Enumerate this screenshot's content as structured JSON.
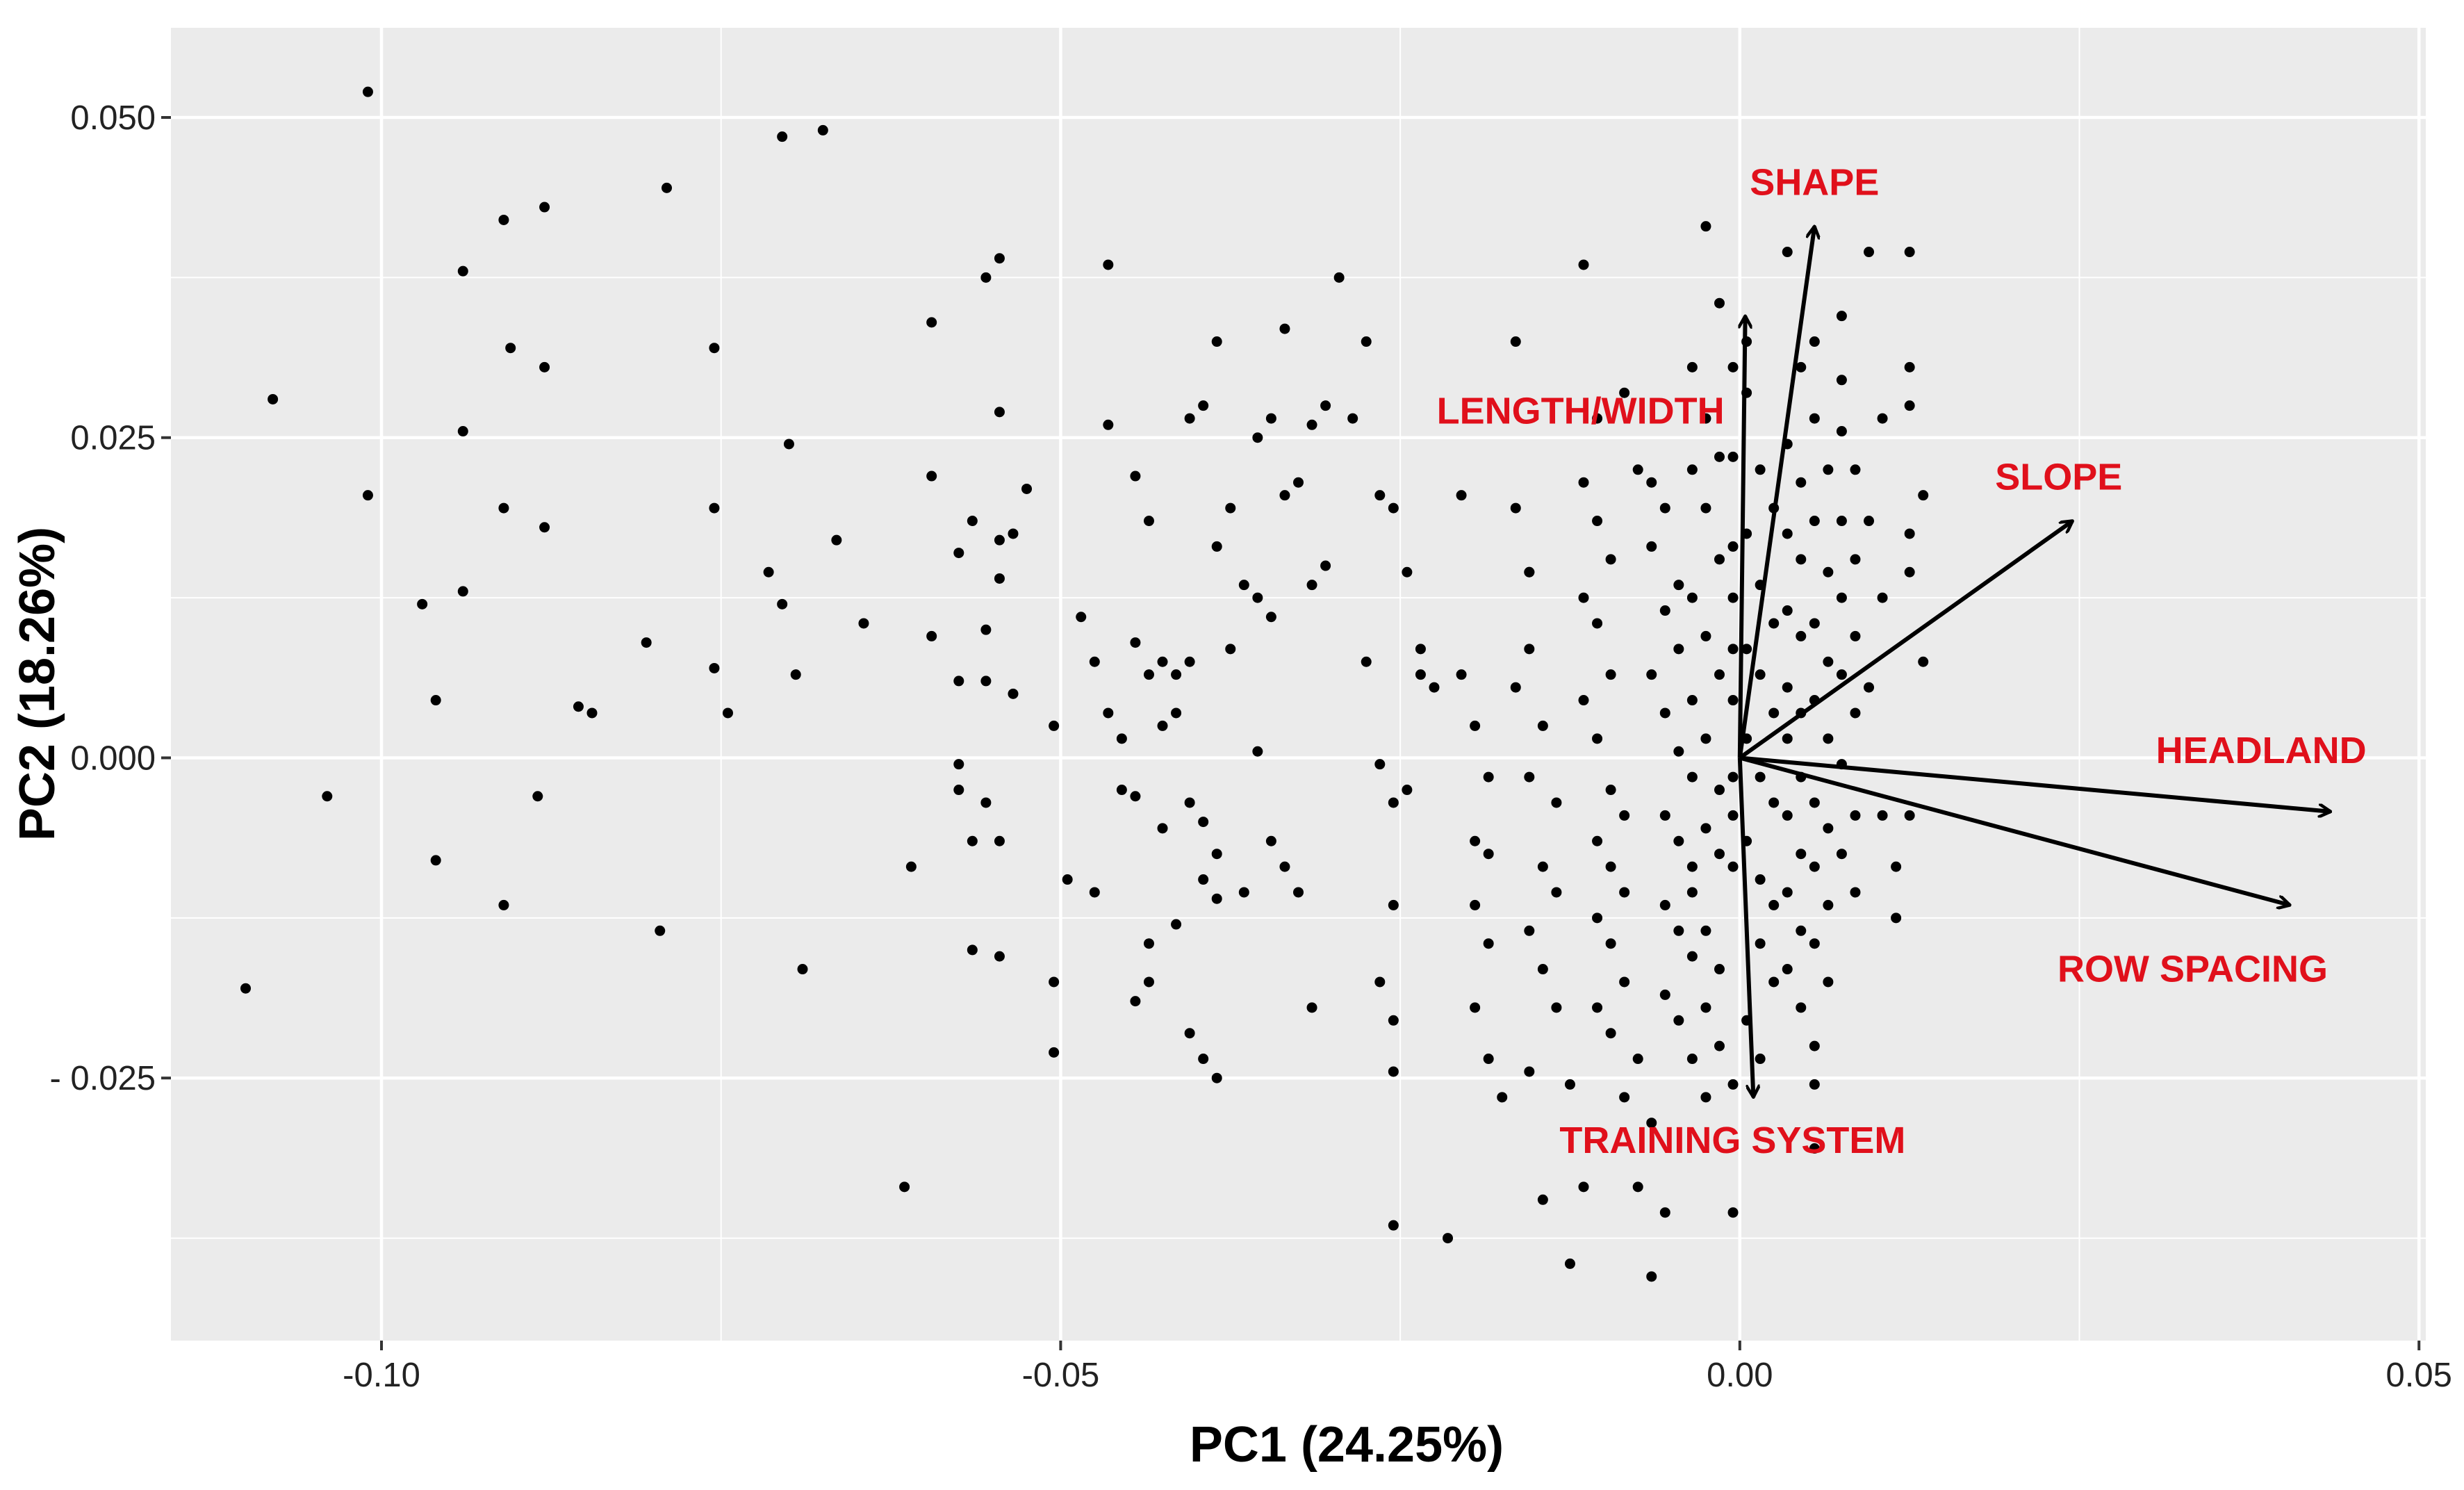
{
  "chart_data": {
    "type": "scatter",
    "title": "",
    "xlabel": "PC1 (24.25%)",
    "ylabel": "PC2 (18.26%)",
    "xlim": [
      -0.1155,
      0.0505
    ],
    "ylim": [
      -0.0455,
      0.057
    ],
    "grid": true,
    "x_ticks": [
      -0.1,
      -0.05,
      0.0,
      0.05
    ],
    "x_tick_labels": [
      "-0.10",
      "-0.05",
      "0.00",
      "0.05"
    ],
    "y_ticks": [
      -0.025,
      0.0,
      0.025,
      0.05
    ],
    "y_tick_labels": [
      "- 0.025",
      "0.000",
      "0.025",
      "0.050"
    ],
    "colors": {
      "panel": "#ebebeb",
      "grid": "#ffffff",
      "points": "#000000",
      "arrows": "#000000",
      "labels": "#e0101b"
    },
    "vectors": [
      {
        "name": "SHAPE",
        "x": 0.0055,
        "y": 0.0415
      },
      {
        "name": "LENGTH/WIDTH",
        "x": 0.0004,
        "y": 0.0345
      },
      {
        "name": "SLOPE",
        "x": 0.0245,
        "y": 0.0185
      },
      {
        "name": "HEADLAND",
        "x": 0.0435,
        "y": -0.0042
      },
      {
        "name": "ROW SPACING",
        "x": 0.0405,
        "y": -0.0115
      },
      {
        "name": "TRAINING SYSTEM",
        "x": 0.001,
        "y": -0.0265
      }
    ],
    "points": [
      [
        -0.101,
        0.052
      ],
      [
        -0.108,
        0.028
      ],
      [
        -0.101,
        0.0205
      ],
      [
        -0.11,
        -0.018
      ],
      [
        -0.104,
        -0.003
      ],
      [
        -0.097,
        0.012
      ],
      [
        -0.096,
        0.0045
      ],
      [
        -0.096,
        -0.008
      ],
      [
        -0.094,
        0.038
      ],
      [
        -0.094,
        0.0255
      ],
      [
        -0.094,
        0.013
      ],
      [
        -0.091,
        0.042
      ],
      [
        -0.0905,
        0.032
      ],
      [
        -0.091,
        0.0195
      ],
      [
        -0.091,
        -0.0115
      ],
      [
        -0.088,
        0.043
      ],
      [
        -0.088,
        0.0305
      ],
      [
        -0.088,
        0.018
      ],
      [
        -0.0885,
        -0.003
      ],
      [
        -0.0855,
        0.004
      ],
      [
        -0.0845,
        0.0035
      ],
      [
        -0.079,
        0.0445
      ],
      [
        -0.0755,
        0.032
      ],
      [
        -0.0755,
        0.0195
      ],
      [
        -0.0805,
        0.009
      ],
      [
        -0.0755,
        0.007
      ],
      [
        -0.0745,
        0.0035
      ],
      [
        -0.0795,
        -0.0135
      ],
      [
        -0.0715,
        0.0145
      ],
      [
        -0.07,
        0.0245
      ],
      [
        -0.0705,
        0.012
      ],
      [
        -0.0695,
        0.0065
      ],
      [
        -0.069,
        -0.0165
      ],
      [
        -0.0705,
        0.0485
      ],
      [
        -0.0675,
        0.049
      ],
      [
        -0.0665,
        0.017
      ],
      [
        -0.0645,
        0.0105
      ],
      [
        -0.061,
        -0.0085
      ],
      [
        -0.0615,
        -0.0335
      ],
      [
        -0.0595,
        0.034
      ],
      [
        -0.0595,
        0.022
      ],
      [
        -0.0595,
        0.0095
      ],
      [
        -0.0575,
        0.016
      ],
      [
        -0.0555,
        0.0375
      ],
      [
        -0.0545,
        0.039
      ],
      [
        -0.0565,
        0.0185
      ],
      [
        -0.0545,
        0.017
      ],
      [
        -0.0545,
        0.014
      ],
      [
        -0.0535,
        0.0175
      ],
      [
        -0.0525,
        0.021
      ],
      [
        -0.0545,
        0.027
      ],
      [
        -0.0555,
        0.01
      ],
      [
        -0.0555,
        0.006
      ],
      [
        -0.0575,
        0.006
      ],
      [
        -0.0535,
        0.005
      ],
      [
        -0.0505,
        0.0025
      ],
      [
        -0.0575,
        -0.0005
      ],
      [
        -0.0575,
        -0.0025
      ],
      [
        -0.0565,
        -0.0065
      ],
      [
        -0.0555,
        -0.0035
      ],
      [
        -0.0545,
        -0.0065
      ],
      [
        -0.0565,
        -0.015
      ],
      [
        -0.0545,
        -0.0155
      ],
      [
        -0.0495,
        -0.0095
      ],
      [
        -0.0505,
        -0.0175
      ],
      [
        -0.0505,
        -0.023
      ],
      [
        -0.0475,
        -0.0105
      ],
      [
        -0.0485,
        0.011
      ],
      [
        -0.0475,
        0.0075
      ],
      [
        -0.0465,
        0.0035
      ],
      [
        -0.0455,
        0.0015
      ],
      [
        -0.0455,
        -0.0025
      ],
      [
        -0.0445,
        0.009
      ],
      [
        -0.0435,
        0.0065
      ],
      [
        -0.0425,
        0.0075
      ],
      [
        -0.0415,
        0.0065
      ],
      [
        -0.0405,
        0.0075
      ],
      [
        -0.0415,
        0.0035
      ],
      [
        -0.0425,
        0.0025
      ],
      [
        -0.0445,
        -0.003
      ],
      [
        -0.0425,
        -0.0055
      ],
      [
        -0.0405,
        -0.0035
      ],
      [
        -0.0395,
        -0.005
      ],
      [
        -0.0385,
        -0.0075
      ],
      [
        -0.0395,
        -0.0095
      ],
      [
        -0.0385,
        -0.011
      ],
      [
        -0.0415,
        -0.013
      ],
      [
        -0.0435,
        -0.0145
      ],
      [
        -0.0435,
        -0.0175
      ],
      [
        -0.0445,
        -0.019
      ],
      [
        -0.0405,
        -0.0215
      ],
      [
        -0.0395,
        -0.0235
      ],
      [
        -0.0385,
        -0.025
      ],
      [
        -0.0465,
        0.0385
      ],
      [
        -0.0465,
        0.026
      ],
      [
        -0.0445,
        0.022
      ],
      [
        -0.0435,
        0.0185
      ],
      [
        -0.0405,
        0.0265
      ],
      [
        -0.0395,
        0.0275
      ],
      [
        -0.0385,
        0.0165
      ],
      [
        -0.0375,
        0.0195
      ],
      [
        -0.0365,
        0.0135
      ],
      [
        -0.0355,
        0.0125
      ],
      [
        -0.0345,
        0.011
      ],
      [
        -0.0385,
        0.0325
      ],
      [
        -0.0355,
        0.025
      ],
      [
        -0.0345,
        0.0265
      ],
      [
        -0.0335,
        0.0335
      ],
      [
        -0.0325,
        0.0215
      ],
      [
        -0.0335,
        0.0205
      ],
      [
        -0.0315,
        0.026
      ],
      [
        -0.0305,
        0.0275
      ],
      [
        -0.0305,
        0.015
      ],
      [
        -0.0315,
        0.0135
      ],
      [
        -0.0375,
        0.0085
      ],
      [
        -0.0355,
        0.0005
      ],
      [
        -0.0345,
        -0.0065
      ],
      [
        -0.0335,
        -0.0085
      ],
      [
        -0.0325,
        -0.0105
      ],
      [
        -0.0315,
        -0.0195
      ],
      [
        -0.0365,
        -0.0105
      ],
      [
        -0.0295,
        0.0375
      ],
      [
        -0.0285,
        0.0265
      ],
      [
        -0.0275,
        0.0325
      ],
      [
        -0.0265,
        0.0205
      ],
      [
        -0.0255,
        0.0195
      ],
      [
        -0.0245,
        0.0145
      ],
      [
        -0.0275,
        0.0075
      ],
      [
        -0.0265,
        -0.0005
      ],
      [
        -0.0255,
        -0.0035
      ],
      [
        -0.0255,
        -0.0115
      ],
      [
        -0.0265,
        -0.0175
      ],
      [
        -0.0255,
        -0.0205
      ],
      [
        -0.0255,
        -0.0245
      ],
      [
        -0.0255,
        -0.0365
      ],
      [
        -0.0235,
        0.0085
      ],
      [
        -0.0235,
        0.0065
      ],
      [
        -0.0245,
        -0.0025
      ],
      [
        -0.0225,
        0.0055
      ],
      [
        -0.0205,
        0.0205
      ],
      [
        -0.0205,
        0.0065
      ],
      [
        -0.0195,
        0.0025
      ],
      [
        -0.0185,
        -0.0015
      ],
      [
        -0.0195,
        -0.0065
      ],
      [
        -0.0185,
        -0.0075
      ],
      [
        -0.0195,
        -0.0115
      ],
      [
        -0.0185,
        -0.0145
      ],
      [
        -0.0195,
        -0.0195
      ],
      [
        -0.0185,
        -0.0235
      ],
      [
        -0.0175,
        -0.0265
      ],
      [
        -0.0215,
        -0.0375
      ],
      [
        -0.0165,
        0.0325
      ],
      [
        -0.0165,
        0.0195
      ],
      [
        -0.0155,
        0.0145
      ],
      [
        -0.0155,
        0.0145
      ],
      [
        -0.0155,
        0.0085
      ],
      [
        -0.0165,
        0.0055
      ],
      [
        -0.0145,
        0.0025
      ],
      [
        -0.0155,
        -0.0015
      ],
      [
        -0.0135,
        -0.0035
      ],
      [
        -0.0145,
        -0.0085
      ],
      [
        -0.0135,
        -0.0105
      ],
      [
        -0.0155,
        -0.0135
      ],
      [
        -0.0145,
        -0.0165
      ],
      [
        -0.0135,
        -0.0195
      ],
      [
        -0.0155,
        -0.0245
      ],
      [
        -0.0125,
        -0.0255
      ],
      [
        -0.0115,
        -0.0335
      ],
      [
        -0.0145,
        -0.0345
      ],
      [
        -0.0125,
        -0.0395
      ],
      [
        -0.0115,
        0.0385
      ],
      [
        -0.0105,
        0.0265
      ],
      [
        -0.0115,
        0.0215
      ],
      [
        -0.0105,
        0.0185
      ],
      [
        -0.0095,
        0.0155
      ],
      [
        -0.0115,
        0.0125
      ],
      [
        -0.0105,
        0.0105
      ],
      [
        -0.0095,
        0.0065
      ],
      [
        -0.0115,
        0.0045
      ],
      [
        -0.0105,
        0.0015
      ],
      [
        -0.0095,
        -0.0025
      ],
      [
        -0.0085,
        -0.0045
      ],
      [
        -0.0105,
        -0.0065
      ],
      [
        -0.0095,
        -0.0085
      ],
      [
        -0.0085,
        -0.0105
      ],
      [
        -0.0105,
        -0.0125
      ],
      [
        -0.0095,
        -0.0145
      ],
      [
        -0.0085,
        -0.0175
      ],
      [
        -0.0105,
        -0.0195
      ],
      [
        -0.0095,
        -0.0215
      ],
      [
        -0.0075,
        -0.0235
      ],
      [
        -0.0085,
        -0.0265
      ],
      [
        -0.0065,
        -0.0285
      ],
      [
        -0.0075,
        -0.0335
      ],
      [
        -0.0055,
        -0.0355
      ],
      [
        -0.0085,
        0.0285
      ],
      [
        -0.0075,
        0.0225
      ],
      [
        -0.0065,
        0.0215
      ],
      [
        -0.0055,
        0.0195
      ],
      [
        -0.0065,
        0.0165
      ],
      [
        -0.0045,
        0.0135
      ],
      [
        -0.0055,
        0.0115
      ],
      [
        -0.0045,
        0.0085
      ],
      [
        -0.0065,
        0.0065
      ],
      [
        -0.0055,
        0.0035
      ],
      [
        -0.0045,
        0.0005
      ],
      [
        -0.0035,
        -0.0015
      ],
      [
        -0.0055,
        -0.0045
      ],
      [
        -0.0045,
        -0.0065
      ],
      [
        -0.0035,
        -0.0085
      ],
      [
        -0.0055,
        -0.0115
      ],
      [
        -0.0045,
        -0.0135
      ],
      [
        -0.0035,
        -0.0155
      ],
      [
        -0.0055,
        -0.0185
      ],
      [
        -0.0045,
        -0.0205
      ],
      [
        -0.0035,
        -0.0235
      ],
      [
        -0.0025,
        -0.0265
      ],
      [
        -0.0065,
        -0.0405
      ],
      [
        -0.0025,
        0.0415
      ],
      [
        -0.0035,
        0.0305
      ],
      [
        -0.0025,
        0.0265
      ],
      [
        -0.0015,
        0.0235
      ],
      [
        -0.0035,
        0.0225
      ],
      [
        -0.0025,
        0.0195
      ],
      [
        -0.0015,
        0.0155
      ],
      [
        -0.0035,
        0.0125
      ],
      [
        -0.0025,
        0.0095
      ],
      [
        -0.0015,
        0.0065
      ],
      [
        -0.0035,
        0.0045
      ],
      [
        -0.0025,
        0.0015
      ],
      [
        -0.0015,
        -0.0025
      ],
      [
        -0.0025,
        -0.0055
      ],
      [
        -0.0015,
        -0.0075
      ],
      [
        -0.0035,
        -0.0105
      ],
      [
        -0.0025,
        -0.0135
      ],
      [
        -0.0015,
        -0.0165
      ],
      [
        -0.0025,
        -0.0195
      ],
      [
        -0.0015,
        -0.0225
      ],
      [
        -0.0005,
        -0.0255
      ],
      [
        -0.0005,
        -0.0355
      ],
      [
        -0.0015,
        0.0355
      ],
      [
        -0.0005,
        0.0305
      ],
      [
        -0.0005,
        0.0235
      ],
      [
        -0.0005,
        0.0165
      ],
      [
        -0.0005,
        0.0125
      ],
      [
        -0.0005,
        0.0085
      ],
      [
        -0.0005,
        0.0045
      ],
      [
        -0.0005,
        -0.0015
      ],
      [
        -0.0005,
        -0.0045
      ],
      [
        -0.0005,
        -0.0085
      ],
      [
        0.0005,
        0.0325
      ],
      [
        0.0005,
        0.0285
      ],
      [
        0.0015,
        0.0225
      ],
      [
        0.0025,
        0.0195
      ],
      [
        0.0005,
        0.0175
      ],
      [
        0.0015,
        0.0135
      ],
      [
        0.0025,
        0.0105
      ],
      [
        0.0005,
        0.0085
      ],
      [
        0.0015,
        0.0065
      ],
      [
        0.0025,
        0.0035
      ],
      [
        0.0005,
        0.0015
      ],
      [
        0.0015,
        -0.0015
      ],
      [
        0.0025,
        -0.0035
      ],
      [
        0.0005,
        -0.0065
      ],
      [
        0.0015,
        -0.0095
      ],
      [
        0.0025,
        -0.0115
      ],
      [
        0.0015,
        -0.0145
      ],
      [
        0.0025,
        -0.0175
      ],
      [
        0.0005,
        -0.0205
      ],
      [
        0.0015,
        -0.0235
      ],
      [
        0.0035,
        0.0395
      ],
      [
        0.0045,
        0.0305
      ],
      [
        0.0035,
        0.0245
      ],
      [
        0.0045,
        0.0215
      ],
      [
        0.0035,
        0.0175
      ],
      [
        0.0045,
        0.0155
      ],
      [
        0.0035,
        0.0115
      ],
      [
        0.0045,
        0.0095
      ],
      [
        0.0035,
        0.0055
      ],
      [
        0.0045,
        0.0035
      ],
      [
        0.0035,
        0.0015
      ],
      [
        0.0045,
        -0.0015
      ],
      [
        0.0035,
        -0.0045
      ],
      [
        0.0045,
        -0.0075
      ],
      [
        0.0035,
        -0.0105
      ],
      [
        0.0045,
        -0.0135
      ],
      [
        0.0035,
        -0.0165
      ],
      [
        0.0045,
        -0.0195
      ],
      [
        0.0055,
        -0.0225
      ],
      [
        0.0055,
        -0.0255
      ],
      [
        0.0055,
        -0.0305
      ],
      [
        0.0055,
        0.0325
      ],
      [
        0.0055,
        0.0265
      ],
      [
        0.0065,
        0.0225
      ],
      [
        0.0055,
        0.0185
      ],
      [
        0.0065,
        0.0145
      ],
      [
        0.0055,
        0.0105
      ],
      [
        0.0065,
        0.0075
      ],
      [
        0.0055,
        0.0045
      ],
      [
        0.0065,
        0.0015
      ],
      [
        0.0055,
        -0.0035
      ],
      [
        0.0065,
        -0.0055
      ],
      [
        0.0055,
        -0.0085
      ],
      [
        0.0065,
        -0.0115
      ],
      [
        0.0055,
        -0.0145
      ],
      [
        0.0065,
        -0.0175
      ],
      [
        0.0075,
        0.0345
      ],
      [
        0.0075,
        0.0295
      ],
      [
        0.0075,
        0.0255
      ],
      [
        0.0085,
        0.0225
      ],
      [
        0.0075,
        0.0185
      ],
      [
        0.0085,
        0.0155
      ],
      [
        0.0075,
        0.0125
      ],
      [
        0.0085,
        0.0095
      ],
      [
        0.0075,
        0.0065
      ],
      [
        0.0085,
        0.0035
      ],
      [
        0.0075,
        -0.0005
      ],
      [
        0.0085,
        -0.0045
      ],
      [
        0.0075,
        -0.0075
      ],
      [
        0.0085,
        -0.0105
      ],
      [
        0.0095,
        0.0395
      ],
      [
        0.0105,
        0.0265
      ],
      [
        0.0095,
        0.0185
      ],
      [
        0.0105,
        0.0125
      ],
      [
        0.0095,
        0.0055
      ],
      [
        0.0105,
        -0.0045
      ],
      [
        0.0115,
        -0.0085
      ],
      [
        0.0115,
        -0.0125
      ],
      [
        0.0125,
        0.0395
      ],
      [
        0.0125,
        0.0305
      ],
      [
        0.0125,
        0.0275
      ],
      [
        0.0135,
        0.0205
      ],
      [
        0.0125,
        0.0175
      ],
      [
        0.0125,
        0.0145
      ],
      [
        0.0135,
        0.0075
      ],
      [
        0.0125,
        -0.0045
      ]
    ]
  }
}
